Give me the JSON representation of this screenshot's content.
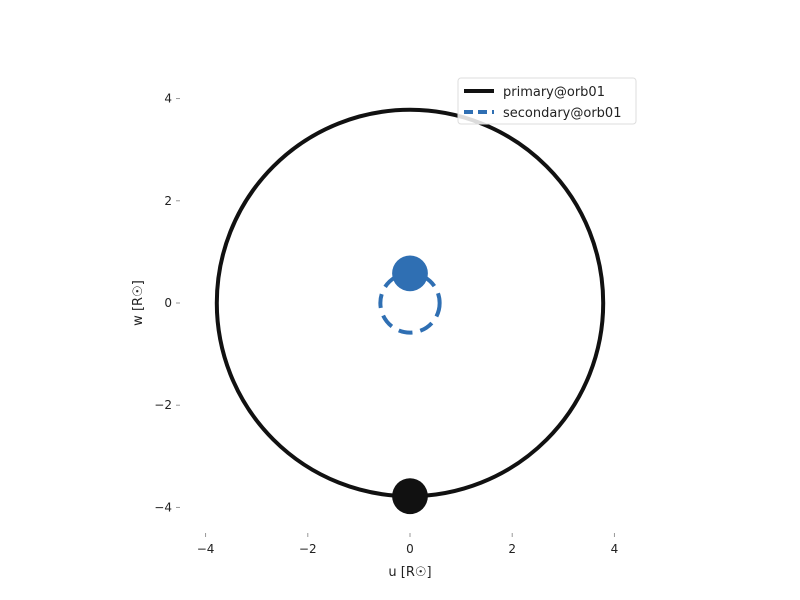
{
  "chart_data": {
    "type": "line",
    "xlabel": "u [R☉]",
    "ylabel": "w [R☉]",
    "xlim": [
      -4.5,
      4.5
    ],
    "ylim": [
      -4.5,
      4.5
    ],
    "x_ticks": [
      -4,
      -2,
      0,
      2,
      4
    ],
    "y_ticks": [
      -4,
      -2,
      0,
      2,
      4
    ],
    "x_tick_labels": [
      "−4",
      "−2",
      "0",
      "2",
      "4"
    ],
    "y_tick_labels": [
      "−4",
      "−2",
      "0",
      "2",
      "4"
    ],
    "grid": false,
    "legend_position": "top-right",
    "series": [
      {
        "name": "primary@orb01",
        "color": "#111111",
        "line_style": "solid",
        "orbit": {
          "center": [
            0,
            0
          ],
          "radius": 3.78
        },
        "current_position": [
          0,
          -3.78
        ],
        "marker_radius": 0.35
      },
      {
        "name": "secondary@orb01",
        "color": "#2f6fb3",
        "line_style": "dashed",
        "orbit": {
          "center": [
            0,
            0
          ],
          "radius": 0.58
        },
        "current_position": [
          0,
          0.58
        ],
        "marker_radius": 0.35
      }
    ]
  }
}
